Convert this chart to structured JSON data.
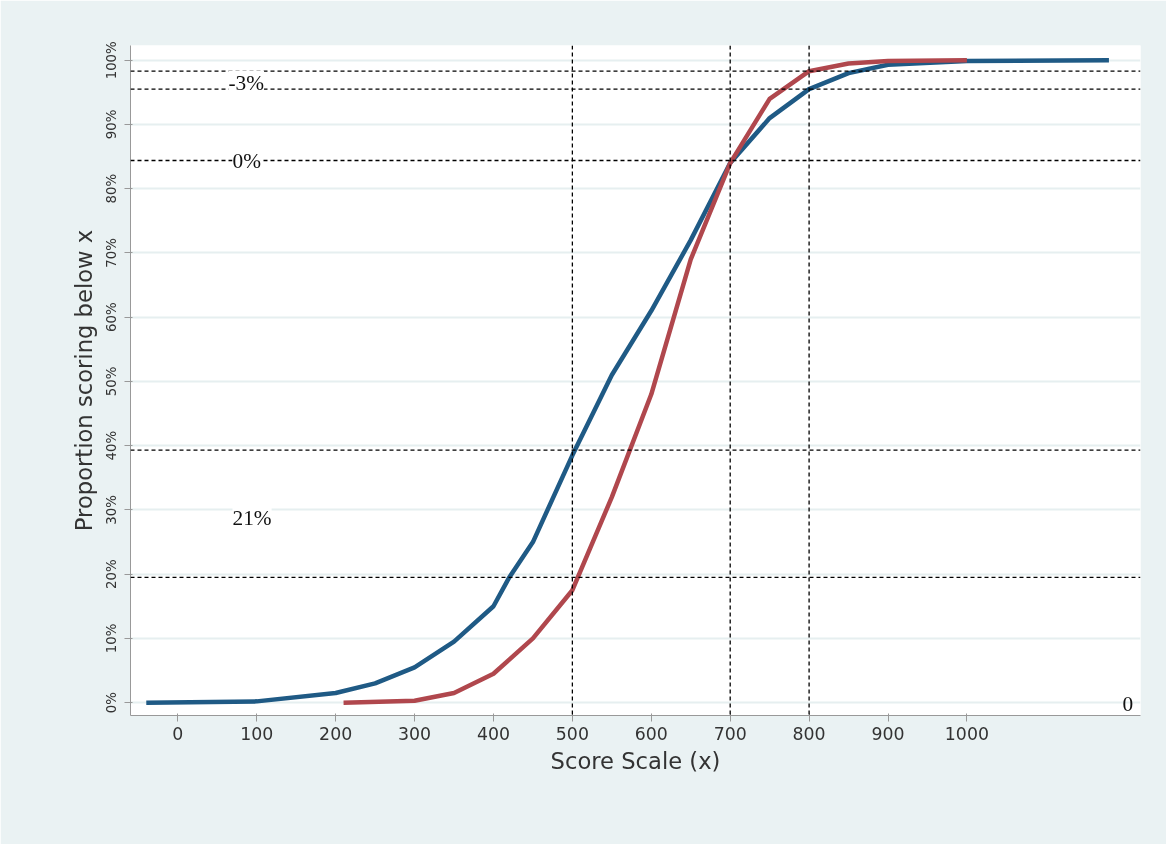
{
  "chart_data": {
    "type": "line",
    "xlabel": "Score Scale (x)",
    "ylabel": "Proportion scoring below x",
    "series": [
      {
        "color": "#1f5a85",
        "x": [
          -40,
          100,
          200,
          250,
          300,
          350,
          400,
          420,
          450,
          500,
          550,
          600,
          650,
          700,
          750,
          800,
          850,
          900,
          1000,
          1180
        ],
        "values": [
          0,
          0.2,
          1.5,
          3,
          5.5,
          9.5,
          15,
          19.5,
          25,
          38.5,
          51,
          61,
          72,
          84,
          91,
          95.5,
          98,
          99.3,
          99.9,
          100
        ]
      },
      {
        "color": "#b0474d",
        "x": [
          210,
          300,
          350,
          400,
          450,
          500,
          550,
          600,
          650,
          700,
          750,
          800,
          850,
          900,
          1000
        ],
        "values": [
          0,
          0.3,
          1.5,
          4.5,
          10,
          17.5,
          32,
          48,
          69,
          84,
          94,
          98.3,
          99.5,
          99.9,
          100
        ]
      }
    ],
    "xlim": [
      -60,
      1220
    ],
    "ylim": [
      -2,
      102.3
    ],
    "xticks": [
      0,
      100,
      200,
      300,
      400,
      500,
      600,
      700,
      800,
      900,
      1000
    ],
    "yticks": [
      {
        "value": 0,
        "label": "0%"
      },
      {
        "value": 10,
        "label": "10%"
      },
      {
        "value": 20,
        "label": "20%"
      },
      {
        "value": 30,
        "label": "30%"
      },
      {
        "value": 40,
        "label": "40%"
      },
      {
        "value": 50,
        "label": "50%"
      },
      {
        "value": 60,
        "label": "60%"
      },
      {
        "value": 70,
        "label": "70%"
      },
      {
        "value": 80,
        "label": "80%"
      },
      {
        "value": 90,
        "label": "90%"
      },
      {
        "value": 100,
        "label": "100%"
      }
    ],
    "grid": "y",
    "marker": "none",
    "line_style": "solid",
    "ref_lines": [
      {
        "axis": "y",
        "value": 98.3,
        "color": "#000000",
        "line_style": "dashed"
      },
      {
        "axis": "y",
        "value": 95.5,
        "color": "#000000",
        "line_style": "dashed"
      },
      {
        "axis": "y",
        "value": 84.4,
        "color": "#000000",
        "line_style": "dashed"
      },
      {
        "axis": "y",
        "value": 39.3,
        "color": "#000000",
        "line_style": "dashed"
      },
      {
        "axis": "y",
        "value": 19.5,
        "color": "#000000",
        "line_style": "dashed"
      },
      {
        "axis": "x",
        "value": 500,
        "color": "#000000",
        "line_style": "dashed"
      },
      {
        "axis": "x",
        "value": 700,
        "color": "#000000",
        "line_style": "dashed"
      },
      {
        "axis": "x",
        "value": 800,
        "color": "#000000",
        "line_style": "dashed"
      }
    ],
    "annotations": [
      "-3%",
      "0%",
      "21%",
      "0"
    ]
  }
}
